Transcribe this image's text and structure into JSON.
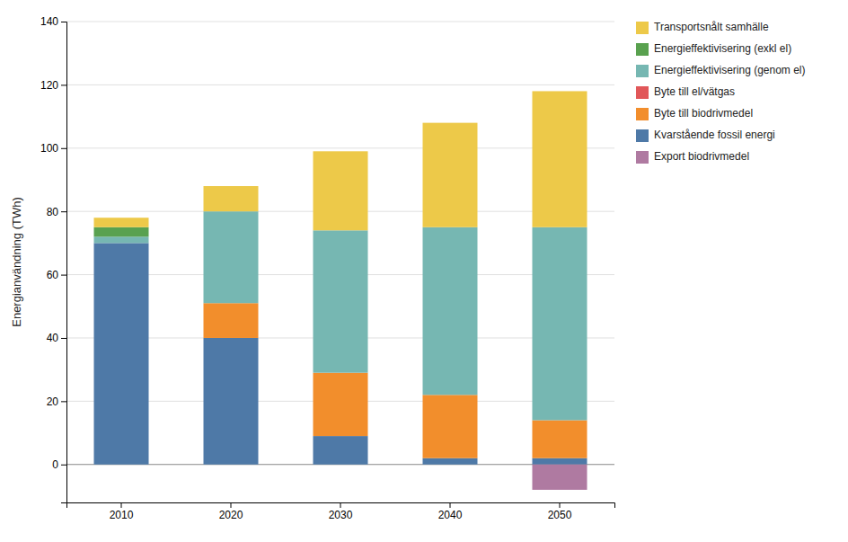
{
  "chart_data": {
    "type": "bar",
    "stacked": true,
    "categories": [
      "2010",
      "2020",
      "2030",
      "2040",
      "2050"
    ],
    "series": [
      {
        "name": "Kvarstående fossil energi",
        "values": [
          70,
          40,
          9,
          2,
          2
        ]
      },
      {
        "name": "Byte till biodrivmedel",
        "values": [
          0,
          11,
          20,
          20,
          12
        ]
      },
      {
        "name": "Byte till el/vätgas",
        "values": [
          0,
          0,
          0,
          0,
          0
        ]
      },
      {
        "name": "Energieffektivisering (genom el)",
        "values": [
          2,
          29,
          45,
          53,
          61
        ]
      },
      {
        "name": "Energieffektivisering (exkl el)",
        "values": [
          3,
          0,
          0,
          0,
          0
        ]
      },
      {
        "name": "Transportsnålt samhälle",
        "values": [
          3,
          8,
          25,
          33,
          43
        ]
      },
      {
        "name": "Export biodrivmedel",
        "values": [
          0,
          0,
          0,
          0,
          -8
        ]
      }
    ],
    "ylabel": "Energianvändning (TWh)",
    "ylim": [
      -12,
      140
    ],
    "yticks": [
      0,
      20,
      40,
      60,
      80,
      100,
      120,
      140
    ],
    "grid": true,
    "legend": "right"
  }
}
